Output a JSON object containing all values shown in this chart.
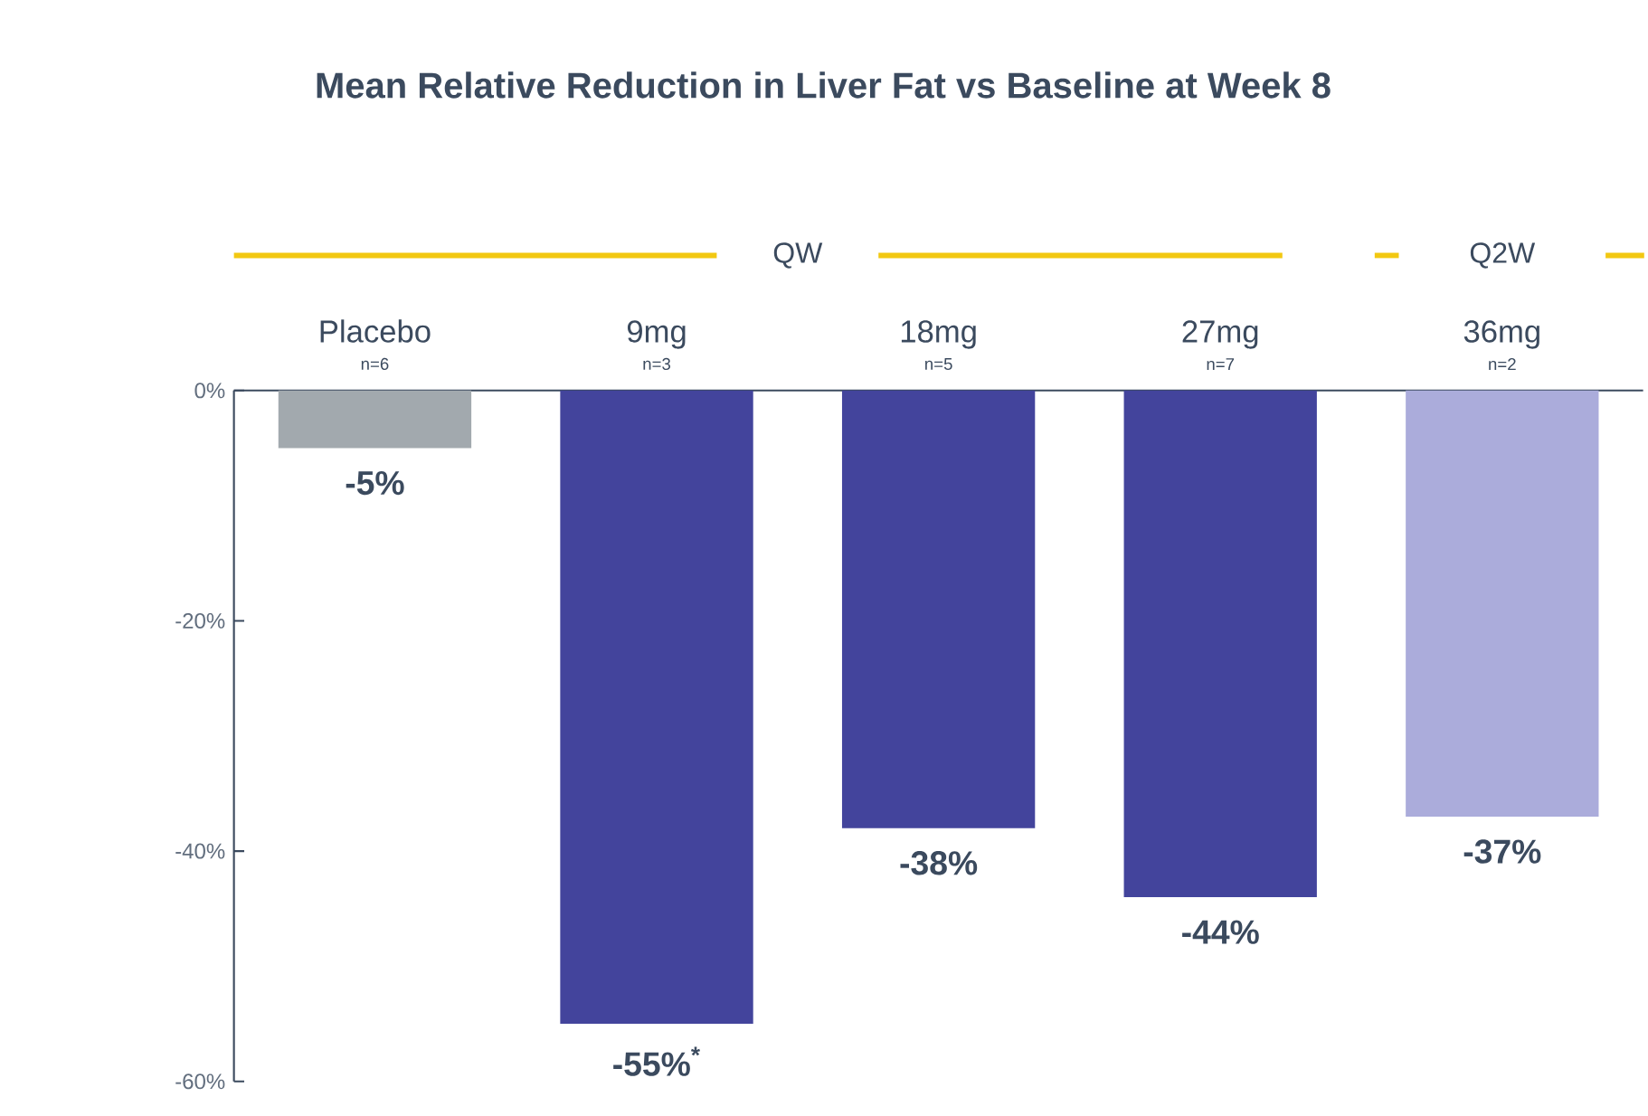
{
  "chart_data": {
    "type": "bar",
    "title": "Mean Relative Reduction in Liver Fat vs Baseline at Week 8",
    "categories": [
      "Placebo",
      "9mg",
      "18mg",
      "27mg",
      "36mg"
    ],
    "values": [
      -5,
      -55,
      -38,
      -44,
      -37
    ],
    "colors": [
      "#a2a9ae",
      "#43449c",
      "#43449c",
      "#43449c",
      "#abacdb"
    ],
    "value_labels": [
      "-5%",
      "-55%$^{*}$",
      "-38%",
      "-44%",
      "-37%"
    ],
    "ylim": [
      -60,
      0
    ],
    "yticks": [
      {
        "value": 0,
        "label": "0%"
      },
      {
        "value": -20,
        "label": "-20%"
      },
      {
        "value": -40,
        "label": "-40%"
      },
      {
        "value": -60,
        "label": "-60%"
      }
    ],
    "grid": false,
    "annotations": [
      "QW",
      "Q2W",
      "n=6",
      "n=3",
      "n=5",
      "n=7",
      "n=2"
    ]
  }
}
